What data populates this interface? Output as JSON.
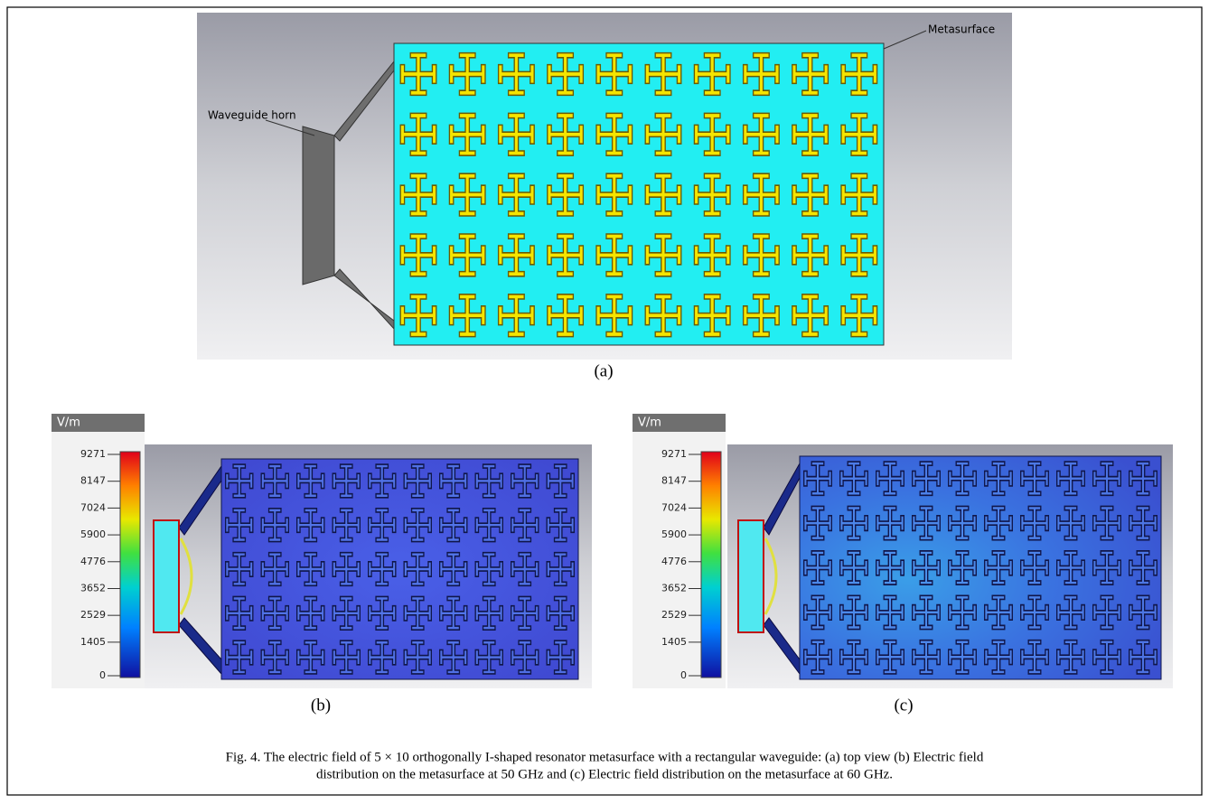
{
  "figure": {
    "panel_a": {
      "horn_label": "Waveguide horn",
      "metasurface_label": "Metasurface",
      "tag": "(a)"
    },
    "panel_b": {
      "unit": "V/m",
      "ticks": [
        9271,
        8147,
        7024,
        5900,
        4776,
        3652,
        2529,
        1405,
        0
      ],
      "tag": "(b)"
    },
    "panel_c": {
      "unit": "V/m",
      "ticks": [
        9271,
        8147,
        7024,
        5900,
        4776,
        3652,
        2529,
        1405,
        0
      ],
      "tag": "(c)"
    },
    "caption": [
      "Fig. 4. The electric field of 5 × 10 orthogonally I-shaped resonator metasurface with a rectangular waveguide: (a) top view (b) Electric field",
      "distribution on the metasurface at 50 GHz and (c) Electric field distribution on the metasurface at 60 GHz."
    ]
  }
}
